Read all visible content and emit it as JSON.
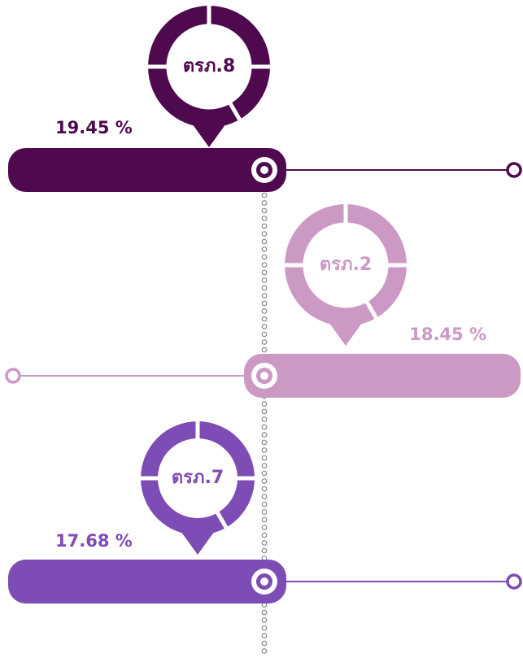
{
  "items": [
    {
      "label": "ตรภ.8",
      "value": "19.45 %"
    },
    {
      "label": "ตรภ.2",
      "value": "18.45 %"
    },
    {
      "label": "ตรภ.7",
      "value": "17.68 %"
    }
  ]
}
